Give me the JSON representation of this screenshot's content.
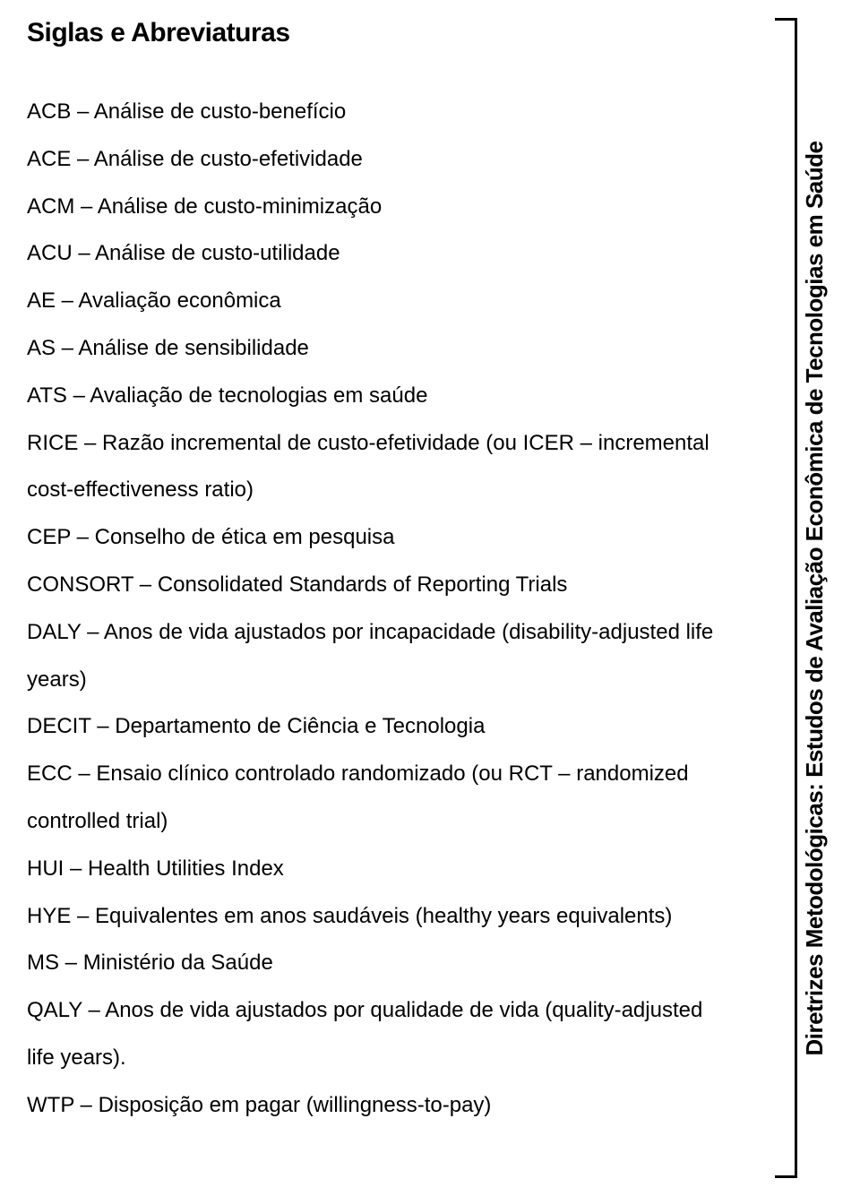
{
  "document": {
    "title": "Siglas e Abreviaturas",
    "sidebar_title": "Diretrizes Metodológicas: Estudos de Avaliação Econômica de Tecnologias em Saúde",
    "entries": [
      {
        "abbr": "ACB",
        "definition": "Análise de custo-benefício"
      },
      {
        "abbr": "ACE",
        "definition": "Análise de custo-efetividade"
      },
      {
        "abbr": "ACM",
        "definition": "Análise de custo-minimização"
      },
      {
        "abbr": "ACU",
        "definition": "Análise de custo-utilidade"
      },
      {
        "abbr": "AE",
        "definition": "Avaliação econômica"
      },
      {
        "abbr": "AS",
        "definition": "Análise de sensibilidade"
      },
      {
        "abbr": "ATS",
        "definition": "Avaliação de tecnologias em saúde"
      },
      {
        "abbr": "RICE",
        "definition": "Razão incremental de custo-efetividade (ou ICER – incremental cost-effectiveness ratio)"
      },
      {
        "abbr": "CEP",
        "definition": "Conselho de ética em pesquisa"
      },
      {
        "abbr": "CONSORT",
        "definition": "Consolidated Standards of Reporting Trials"
      },
      {
        "abbr": "DALY",
        "definition": "Anos de vida ajustados por incapacidade (disability-adjusted life years)"
      },
      {
        "abbr": "DECIT",
        "definition": "Departamento de Ciência e Tecnologia"
      },
      {
        "abbr": "ECC",
        "definition": "Ensaio clínico controlado randomizado (ou RCT – randomized controlled trial)"
      },
      {
        "abbr": "HUI",
        "definition": "Health Utilities Index"
      },
      {
        "abbr": "HYE",
        "definition": "Equivalentes em anos saudáveis (healthy years equivalents)"
      },
      {
        "abbr": "MS",
        "definition": "Ministério da Saúde"
      },
      {
        "abbr": "QALY",
        "definition": "Anos de vida ajustados por qualidade de vida (quality-adjusted life years)."
      },
      {
        "abbr": "WTP",
        "definition": "Disposição em pagar (willingness-to-pay)"
      }
    ],
    "colors": {
      "text": "#000000",
      "background": "#ffffff"
    },
    "typography": {
      "title_font": "Arial Black",
      "title_size_pt": 22,
      "body_font": "Futura Light",
      "body_size_pt": 18,
      "sidebar_font": "Arial Black",
      "sidebar_size_pt": 20
    }
  }
}
